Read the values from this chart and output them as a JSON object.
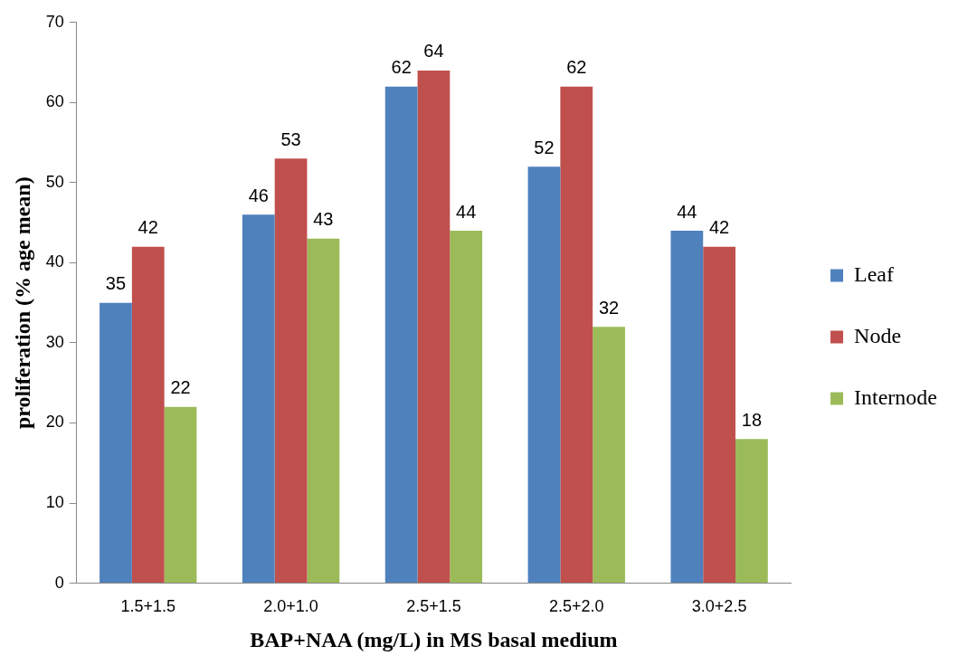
{
  "chart_data": {
    "type": "bar",
    "xlabel": "BAP+NAA (mg/L) in MS basal medium",
    "ylabel": "proliferation (% age mean)",
    "categories": [
      "1.5+1.5",
      "2.0+1.0",
      "2.5+1.5",
      "2.5+2.0",
      "3.0+2.5"
    ],
    "series": [
      {
        "name": "Leaf",
        "color": "#4f81bd",
        "values": [
          35,
          46,
          62,
          52,
          44
        ]
      },
      {
        "name": "Node",
        "color": "#c0504d",
        "values": [
          42,
          53,
          64,
          62,
          42
        ]
      },
      {
        "name": "Internode",
        "color": "#9bbb59",
        "values": [
          22,
          43,
          44,
          32,
          18
        ]
      }
    ],
    "ylim": [
      0,
      70
    ],
    "yticks": [
      0,
      10,
      20,
      30,
      40,
      50,
      60,
      70
    ],
    "legend": "right",
    "data_labels": true
  }
}
